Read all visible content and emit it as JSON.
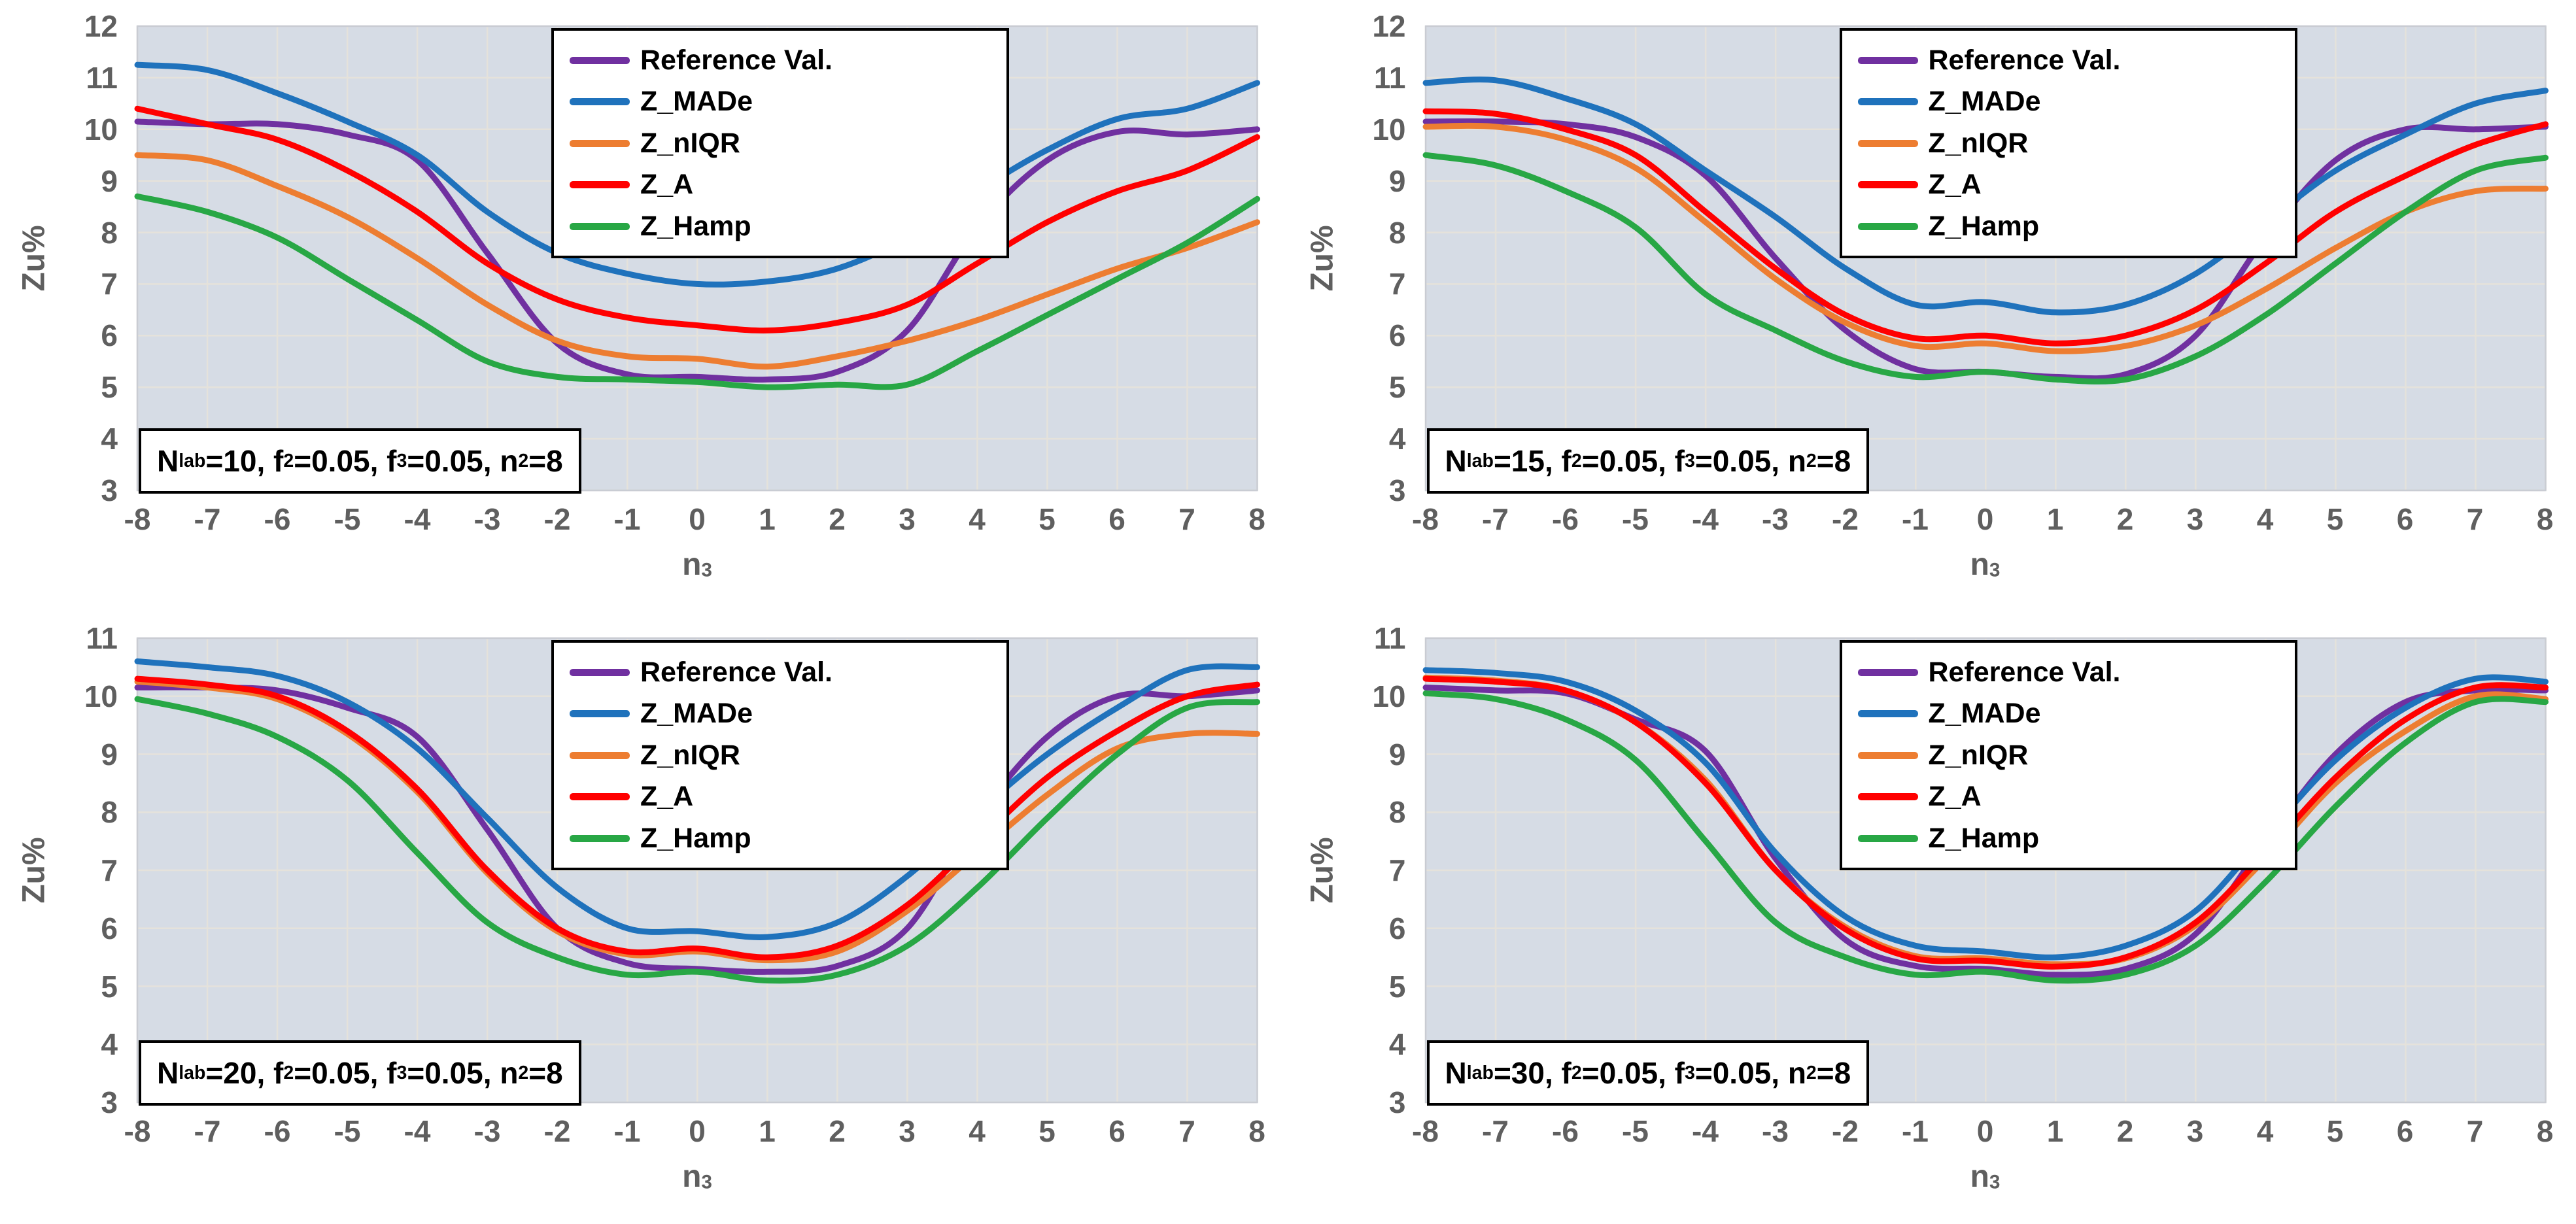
{
  "axes": {
    "y_label": "Zu%",
    "x_label_base": "n",
    "x_label_sub": "3"
  },
  "colors": {
    "reference": "#7030A0",
    "z_made": "#1F72BC",
    "z_niqr": "#ED7D31",
    "z_a": "#FF0000",
    "z_hamp": "#28A745",
    "plot_bg": "#D6DCE5",
    "gridline": "#E5E2DB",
    "plot_border": "#C9CCD3",
    "tick_text": "#5F5F5F"
  },
  "legend": {
    "items": [
      {
        "label": "Reference Val.",
        "color_key": "reference"
      },
      {
        "label": "Z_MADe",
        "color_key": "z_made"
      },
      {
        "label": "Z_nIQR",
        "color_key": "z_niqr"
      },
      {
        "label": "Z_A",
        "color_key": "z_a"
      },
      {
        "label": "Z_Hamp",
        "color_key": "z_hamp"
      }
    ]
  },
  "chart_data": [
    {
      "type": "line",
      "annotation_text": "Nlab=10, f2=0.05, f3=0.05, n2=8",
      "annotation_parts": [
        {
          "t": "N"
        },
        {
          "t": "lab",
          "sub": true
        },
        {
          "t": "=10, f"
        },
        {
          "t": "2",
          "sub": true
        },
        {
          "t": "=0.05, f"
        },
        {
          "t": "3",
          "sub": true
        },
        {
          "t": "=0.05, n"
        },
        {
          "t": "2",
          "sub": true
        },
        {
          "t": "=8"
        }
      ],
      "x": [
        -8,
        -7,
        -6,
        -5,
        -4,
        -3,
        -2,
        -1,
        0,
        1,
        2,
        3,
        4,
        5,
        6,
        7,
        8
      ],
      "xlabel": "n3",
      "ylabel": "Zu%",
      "ylim": [
        3,
        12
      ],
      "yticks": [
        3,
        4,
        5,
        6,
        7,
        8,
        9,
        10,
        11,
        12
      ],
      "grid": true,
      "legend_position": "top-center",
      "series": [
        {
          "name": "Reference Val.",
          "color_key": "reference",
          "values": [
            10.15,
            10.1,
            10.1,
            9.9,
            9.4,
            7.6,
            5.85,
            5.25,
            5.2,
            5.15,
            5.3,
            6.1,
            8.1,
            9.4,
            9.95,
            9.9,
            10.0
          ]
        },
        {
          "name": "Z_MADe",
          "color_key": "z_made",
          "values": [
            11.25,
            11.15,
            10.7,
            10.15,
            9.5,
            8.4,
            7.6,
            7.2,
            7.0,
            7.05,
            7.3,
            7.9,
            8.8,
            9.6,
            10.2,
            10.4,
            10.9
          ]
        },
        {
          "name": "Z_nIQR",
          "color_key": "z_niqr",
          "values": [
            9.5,
            9.4,
            8.9,
            8.3,
            7.5,
            6.6,
            5.9,
            5.6,
            5.55,
            5.4,
            5.6,
            5.9,
            6.3,
            6.8,
            7.3,
            7.7,
            8.2
          ]
        },
        {
          "name": "Z_A",
          "color_key": "z_a",
          "values": [
            10.4,
            10.1,
            9.8,
            9.2,
            8.4,
            7.4,
            6.7,
            6.35,
            6.2,
            6.1,
            6.25,
            6.6,
            7.4,
            8.2,
            8.8,
            9.2,
            9.85
          ]
        },
        {
          "name": "Z_Hamp",
          "color_key": "z_hamp",
          "values": [
            8.7,
            8.4,
            7.9,
            7.1,
            6.3,
            5.5,
            5.2,
            5.15,
            5.1,
            5.0,
            5.05,
            5.05,
            5.7,
            6.4,
            7.1,
            7.8,
            8.65
          ]
        }
      ]
    },
    {
      "type": "line",
      "annotation_text": "Nlab=15, f2=0.05, f3=0.05, n2=8",
      "annotation_parts": [
        {
          "t": "N"
        },
        {
          "t": "lab",
          "sub": true
        },
        {
          "t": "=15, f"
        },
        {
          "t": "2",
          "sub": true
        },
        {
          "t": "=0.05, f"
        },
        {
          "t": "3",
          "sub": true
        },
        {
          "t": "=0.05, n"
        },
        {
          "t": "2",
          "sub": true
        },
        {
          "t": "=8"
        }
      ],
      "x": [
        -8,
        -7,
        -6,
        -5,
        -4,
        -3,
        -2,
        -1,
        0,
        1,
        2,
        3,
        4,
        5,
        6,
        7,
        8
      ],
      "xlabel": "n3",
      "ylabel": "Zu%",
      "ylim": [
        3,
        12
      ],
      "yticks": [
        3,
        4,
        5,
        6,
        7,
        8,
        9,
        10,
        11,
        12
      ],
      "grid": true,
      "legend_position": "top-center",
      "series": [
        {
          "name": "Reference Val.",
          "color_key": "reference",
          "values": [
            10.15,
            10.15,
            10.1,
            9.85,
            9.1,
            7.5,
            6.1,
            5.35,
            5.3,
            5.2,
            5.25,
            6.0,
            7.9,
            9.4,
            10.0,
            10.0,
            10.05
          ]
        },
        {
          "name": "Z_MADe",
          "color_key": "z_made",
          "values": [
            10.9,
            10.95,
            10.6,
            10.1,
            9.2,
            8.3,
            7.3,
            6.6,
            6.65,
            6.45,
            6.6,
            7.2,
            8.2,
            9.2,
            9.9,
            10.5,
            10.75
          ]
        },
        {
          "name": "Z_nIQR",
          "color_key": "z_niqr",
          "values": [
            10.05,
            10.05,
            9.8,
            9.25,
            8.2,
            7.1,
            6.25,
            5.8,
            5.85,
            5.7,
            5.8,
            6.2,
            6.9,
            7.7,
            8.4,
            8.8,
            8.85
          ]
        },
        {
          "name": "Z_A",
          "color_key": "z_a",
          "values": [
            10.35,
            10.3,
            10.0,
            9.5,
            8.4,
            7.3,
            6.4,
            5.95,
            6.0,
            5.85,
            6.0,
            6.5,
            7.4,
            8.4,
            9.1,
            9.7,
            10.1
          ]
        },
        {
          "name": "Z_Hamp",
          "color_key": "z_hamp",
          "values": [
            9.5,
            9.3,
            8.8,
            8.1,
            6.8,
            6.1,
            5.5,
            5.2,
            5.3,
            5.15,
            5.15,
            5.6,
            6.4,
            7.4,
            8.4,
            9.2,
            9.45
          ]
        }
      ]
    },
    {
      "type": "line",
      "annotation_text": "Nlab=20, f2=0.05, f3=0.05, n2=8",
      "annotation_parts": [
        {
          "t": "N"
        },
        {
          "t": "lab",
          "sub": true
        },
        {
          "t": "=20, f"
        },
        {
          "t": "2",
          "sub": true
        },
        {
          "t": "=0.05, f"
        },
        {
          "t": "3",
          "sub": true
        },
        {
          "t": "=0.05, n"
        },
        {
          "t": "2",
          "sub": true
        },
        {
          "t": "=8"
        }
      ],
      "x": [
        -8,
        -7,
        -6,
        -5,
        -4,
        -3,
        -2,
        -1,
        0,
        1,
        2,
        3,
        4,
        5,
        6,
        7,
        8
      ],
      "xlabel": "n3",
      "ylabel": "Zu%",
      "ylim": [
        3,
        11
      ],
      "yticks": [
        3,
        4,
        5,
        6,
        7,
        8,
        9,
        10,
        11
      ],
      "grid": true,
      "legend_position": "top-center",
      "series": [
        {
          "name": "Reference Val.",
          "color_key": "reference",
          "values": [
            10.15,
            10.15,
            10.1,
            9.8,
            9.3,
            7.7,
            6.0,
            5.4,
            5.3,
            5.25,
            5.35,
            6.0,
            7.9,
            9.3,
            10.0,
            10.0,
            10.1
          ]
        },
        {
          "name": "Z_MADe",
          "color_key": "z_made",
          "values": [
            10.6,
            10.5,
            10.35,
            9.9,
            9.1,
            7.9,
            6.7,
            6.0,
            5.95,
            5.85,
            6.1,
            6.9,
            8.0,
            9.0,
            9.8,
            10.45,
            10.5
          ]
        },
        {
          "name": "Z_nIQR",
          "color_key": "z_niqr",
          "values": [
            10.25,
            10.15,
            9.95,
            9.35,
            8.35,
            6.95,
            5.95,
            5.55,
            5.6,
            5.45,
            5.6,
            6.3,
            7.3,
            8.3,
            9.1,
            9.35,
            9.35
          ]
        },
        {
          "name": "Z_A",
          "color_key": "z_a",
          "values": [
            10.3,
            10.2,
            10.0,
            9.4,
            8.4,
            7.0,
            6.0,
            5.6,
            5.65,
            5.5,
            5.7,
            6.4,
            7.5,
            8.6,
            9.4,
            10.0,
            10.2
          ]
        },
        {
          "name": "Z_Hamp",
          "color_key": "z_hamp",
          "values": [
            9.95,
            9.7,
            9.3,
            8.55,
            7.3,
            6.1,
            5.5,
            5.2,
            5.25,
            5.1,
            5.2,
            5.7,
            6.7,
            7.9,
            9.0,
            9.8,
            9.9
          ]
        }
      ]
    },
    {
      "type": "line",
      "annotation_text": "Nlab=30, f2=0.05, f3=0.05, n2=8",
      "annotation_parts": [
        {
          "t": "N"
        },
        {
          "t": "lab",
          "sub": true
        },
        {
          "t": "=30, f"
        },
        {
          "t": "2",
          "sub": true
        },
        {
          "t": "=0.05, f"
        },
        {
          "t": "3",
          "sub": true
        },
        {
          "t": "=0.05, n"
        },
        {
          "t": "2",
          "sub": true
        },
        {
          "t": "=8"
        }
      ],
      "x": [
        -8,
        -7,
        -6,
        -5,
        -4,
        -3,
        -2,
        -1,
        0,
        1,
        2,
        3,
        4,
        5,
        6,
        7,
        8
      ],
      "xlabel": "n3",
      "ylabel": "Zu%",
      "ylim": [
        3,
        11
      ],
      "yticks": [
        3,
        4,
        5,
        6,
        7,
        8,
        9,
        10,
        11
      ],
      "grid": true,
      "legend_position": "top-center",
      "series": [
        {
          "name": "Reference Val.",
          "color_key": "reference",
          "values": [
            10.15,
            10.1,
            10.05,
            9.6,
            9.05,
            7.2,
            5.8,
            5.35,
            5.3,
            5.2,
            5.3,
            5.9,
            7.5,
            9.0,
            9.9,
            10.1,
            10.1
          ]
        },
        {
          "name": "Z_MADe",
          "color_key": "z_made",
          "values": [
            10.45,
            10.4,
            10.25,
            9.75,
            8.85,
            7.3,
            6.2,
            5.7,
            5.6,
            5.5,
            5.7,
            6.3,
            7.6,
            8.9,
            9.8,
            10.3,
            10.25
          ]
        },
        {
          "name": "Z_nIQR",
          "color_key": "z_niqr",
          "values": [
            10.32,
            10.27,
            10.1,
            9.55,
            8.55,
            7.0,
            6.02,
            5.52,
            5.48,
            5.38,
            5.48,
            6.05,
            7.2,
            8.5,
            9.4,
            10.0,
            9.95
          ]
        },
        {
          "name": "Z_A",
          "color_key": "z_a",
          "values": [
            10.3,
            10.25,
            10.1,
            9.55,
            8.5,
            7.0,
            5.98,
            5.48,
            5.44,
            5.34,
            5.5,
            6.1,
            7.3,
            8.6,
            9.6,
            10.15,
            10.15
          ]
        },
        {
          "name": "Z_Hamp",
          "color_key": "z_hamp",
          "values": [
            10.05,
            9.95,
            9.6,
            8.9,
            7.5,
            6.1,
            5.5,
            5.2,
            5.25,
            5.1,
            5.2,
            5.7,
            6.8,
            8.1,
            9.2,
            9.9,
            9.9
          ]
        }
      ]
    }
  ]
}
